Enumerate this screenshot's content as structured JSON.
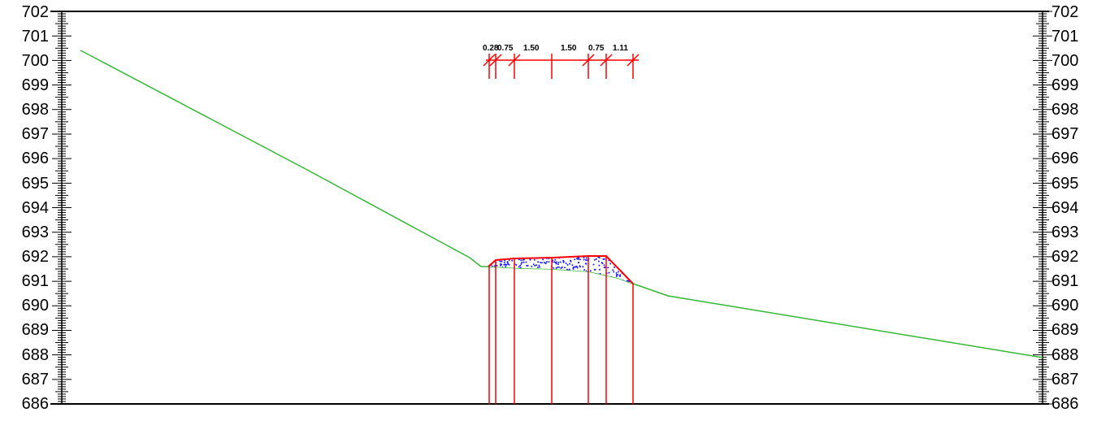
{
  "colors": {
    "frame": "#000000",
    "ground_line": "#33b833",
    "structure": "#ff0000",
    "fill_dots": "#1a1aff"
  },
  "elevation_axis": {
    "min": 686,
    "max": 702,
    "labels_left": [
      "702",
      "701",
      "700",
      "699",
      "698",
      "697",
      "696",
      "695",
      "694",
      "693",
      "692",
      "691",
      "690",
      "689",
      "688",
      "687",
      "686"
    ],
    "labels_right": [
      "702",
      "701",
      "700",
      "699",
      "698",
      "697",
      "696",
      "695",
      "694",
      "693",
      "692",
      "691",
      "690",
      "689",
      "688",
      "687",
      "686"
    ]
  },
  "dimension_labels": [
    "0.28",
    "0.75",
    "1.50",
    "1.50",
    "0.75",
    "1.11"
  ]
}
